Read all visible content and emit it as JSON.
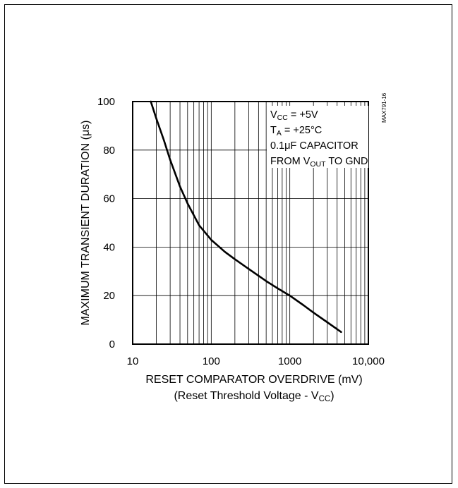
{
  "chart_data": {
    "type": "line",
    "xscale": "log",
    "xlim": [
      10,
      10000
    ],
    "ylim": [
      0,
      100
    ],
    "x_ticks": [
      "10",
      "100",
      "1000",
      "10,000"
    ],
    "y_ticks": [
      "0",
      "20",
      "40",
      "60",
      "80",
      "100"
    ],
    "xlabel": {
      "line1": "RESET COMPARATOR OVERDRIVE (mV)",
      "line2_pre": "(Reset Threshold Voltage - V",
      "line2_sub": "CC",
      "line2_post": ")"
    },
    "ylabel": {
      "pre": "MAXIMUM TRANSIENT DURATION (",
      "mu": "μ",
      "post": "s)"
    },
    "grid": true,
    "series": [
      {
        "x": [
          17,
          20,
          25,
          30,
          40,
          50,
          70,
          100,
          150,
          200,
          300,
          500,
          700,
          1000,
          1500,
          2000,
          3000,
          4500
        ],
        "y": [
          100,
          93,
          84,
          76,
          65,
          58,
          49,
          43,
          38,
          35,
          31,
          26,
          23,
          20,
          16,
          13,
          9,
          5
        ]
      }
    ],
    "annotation": {
      "l1_pre": "V",
      "l1_sub": "CC",
      "l1_post": " = +5V",
      "l2_pre": "T",
      "l2_sub": "A",
      "l2_post": " = +25°C",
      "l3_pre": "0.1",
      "l3_mu": "μ",
      "l3_post": "F CAPACITOR",
      "l4_pre": "FROM V",
      "l4_sub": "OUT",
      "l4_post": " TO GND"
    },
    "figure_id": "MAX791-16"
  }
}
